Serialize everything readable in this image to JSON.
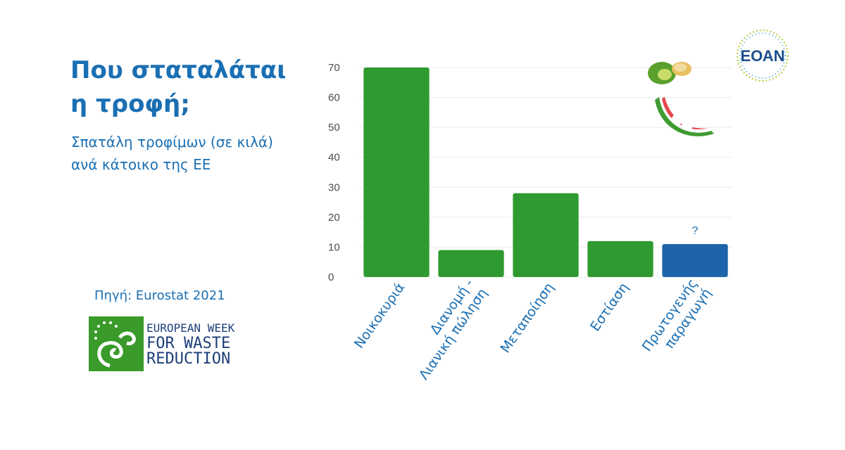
{
  "title": "Που σταταλάται η τροφή;",
  "subtitle": "Σπατάλη τροφίμων (σε κιλά) ανά κάτοικο της ΕΕ",
  "source": "Πηγή: Eurostat 2021",
  "logos": {
    "ewwr": {
      "line1": "EUROPEAN WEEK",
      "line2": "FOR WASTE",
      "line3": "REDUCTION"
    },
    "eoan": {
      "text": "ΕΟΑΝ"
    }
  },
  "colors": {
    "text": "#1a6fb3",
    "bar": "#2f9a2f",
    "highlight_bar": "#1e64aa",
    "grid": "#e8ecef"
  },
  "chart_data": {
    "type": "bar",
    "categories": [
      "Νοικοκυριά",
      "Διανομή - Λιανική πώληση",
      "Μεταποίηση",
      "Εστίαση",
      "Πρωτογενής παραγωγή"
    ],
    "category_lines": [
      [
        "Νοικοκυριά"
      ],
      [
        "Διανομή -",
        "Λιανική πώληση"
      ],
      [
        "Μεταποίηση"
      ],
      [
        "Εστίαση"
      ],
      [
        "Πρωτογενής",
        "παραγωγή"
      ]
    ],
    "values": [
      70,
      9,
      28,
      12,
      11
    ],
    "highlight_index": 4,
    "annotation": "?",
    "ylim": [
      0,
      70
    ],
    "yticks": [
      0,
      10,
      20,
      30,
      40,
      50,
      60,
      70
    ],
    "grid": true
  }
}
